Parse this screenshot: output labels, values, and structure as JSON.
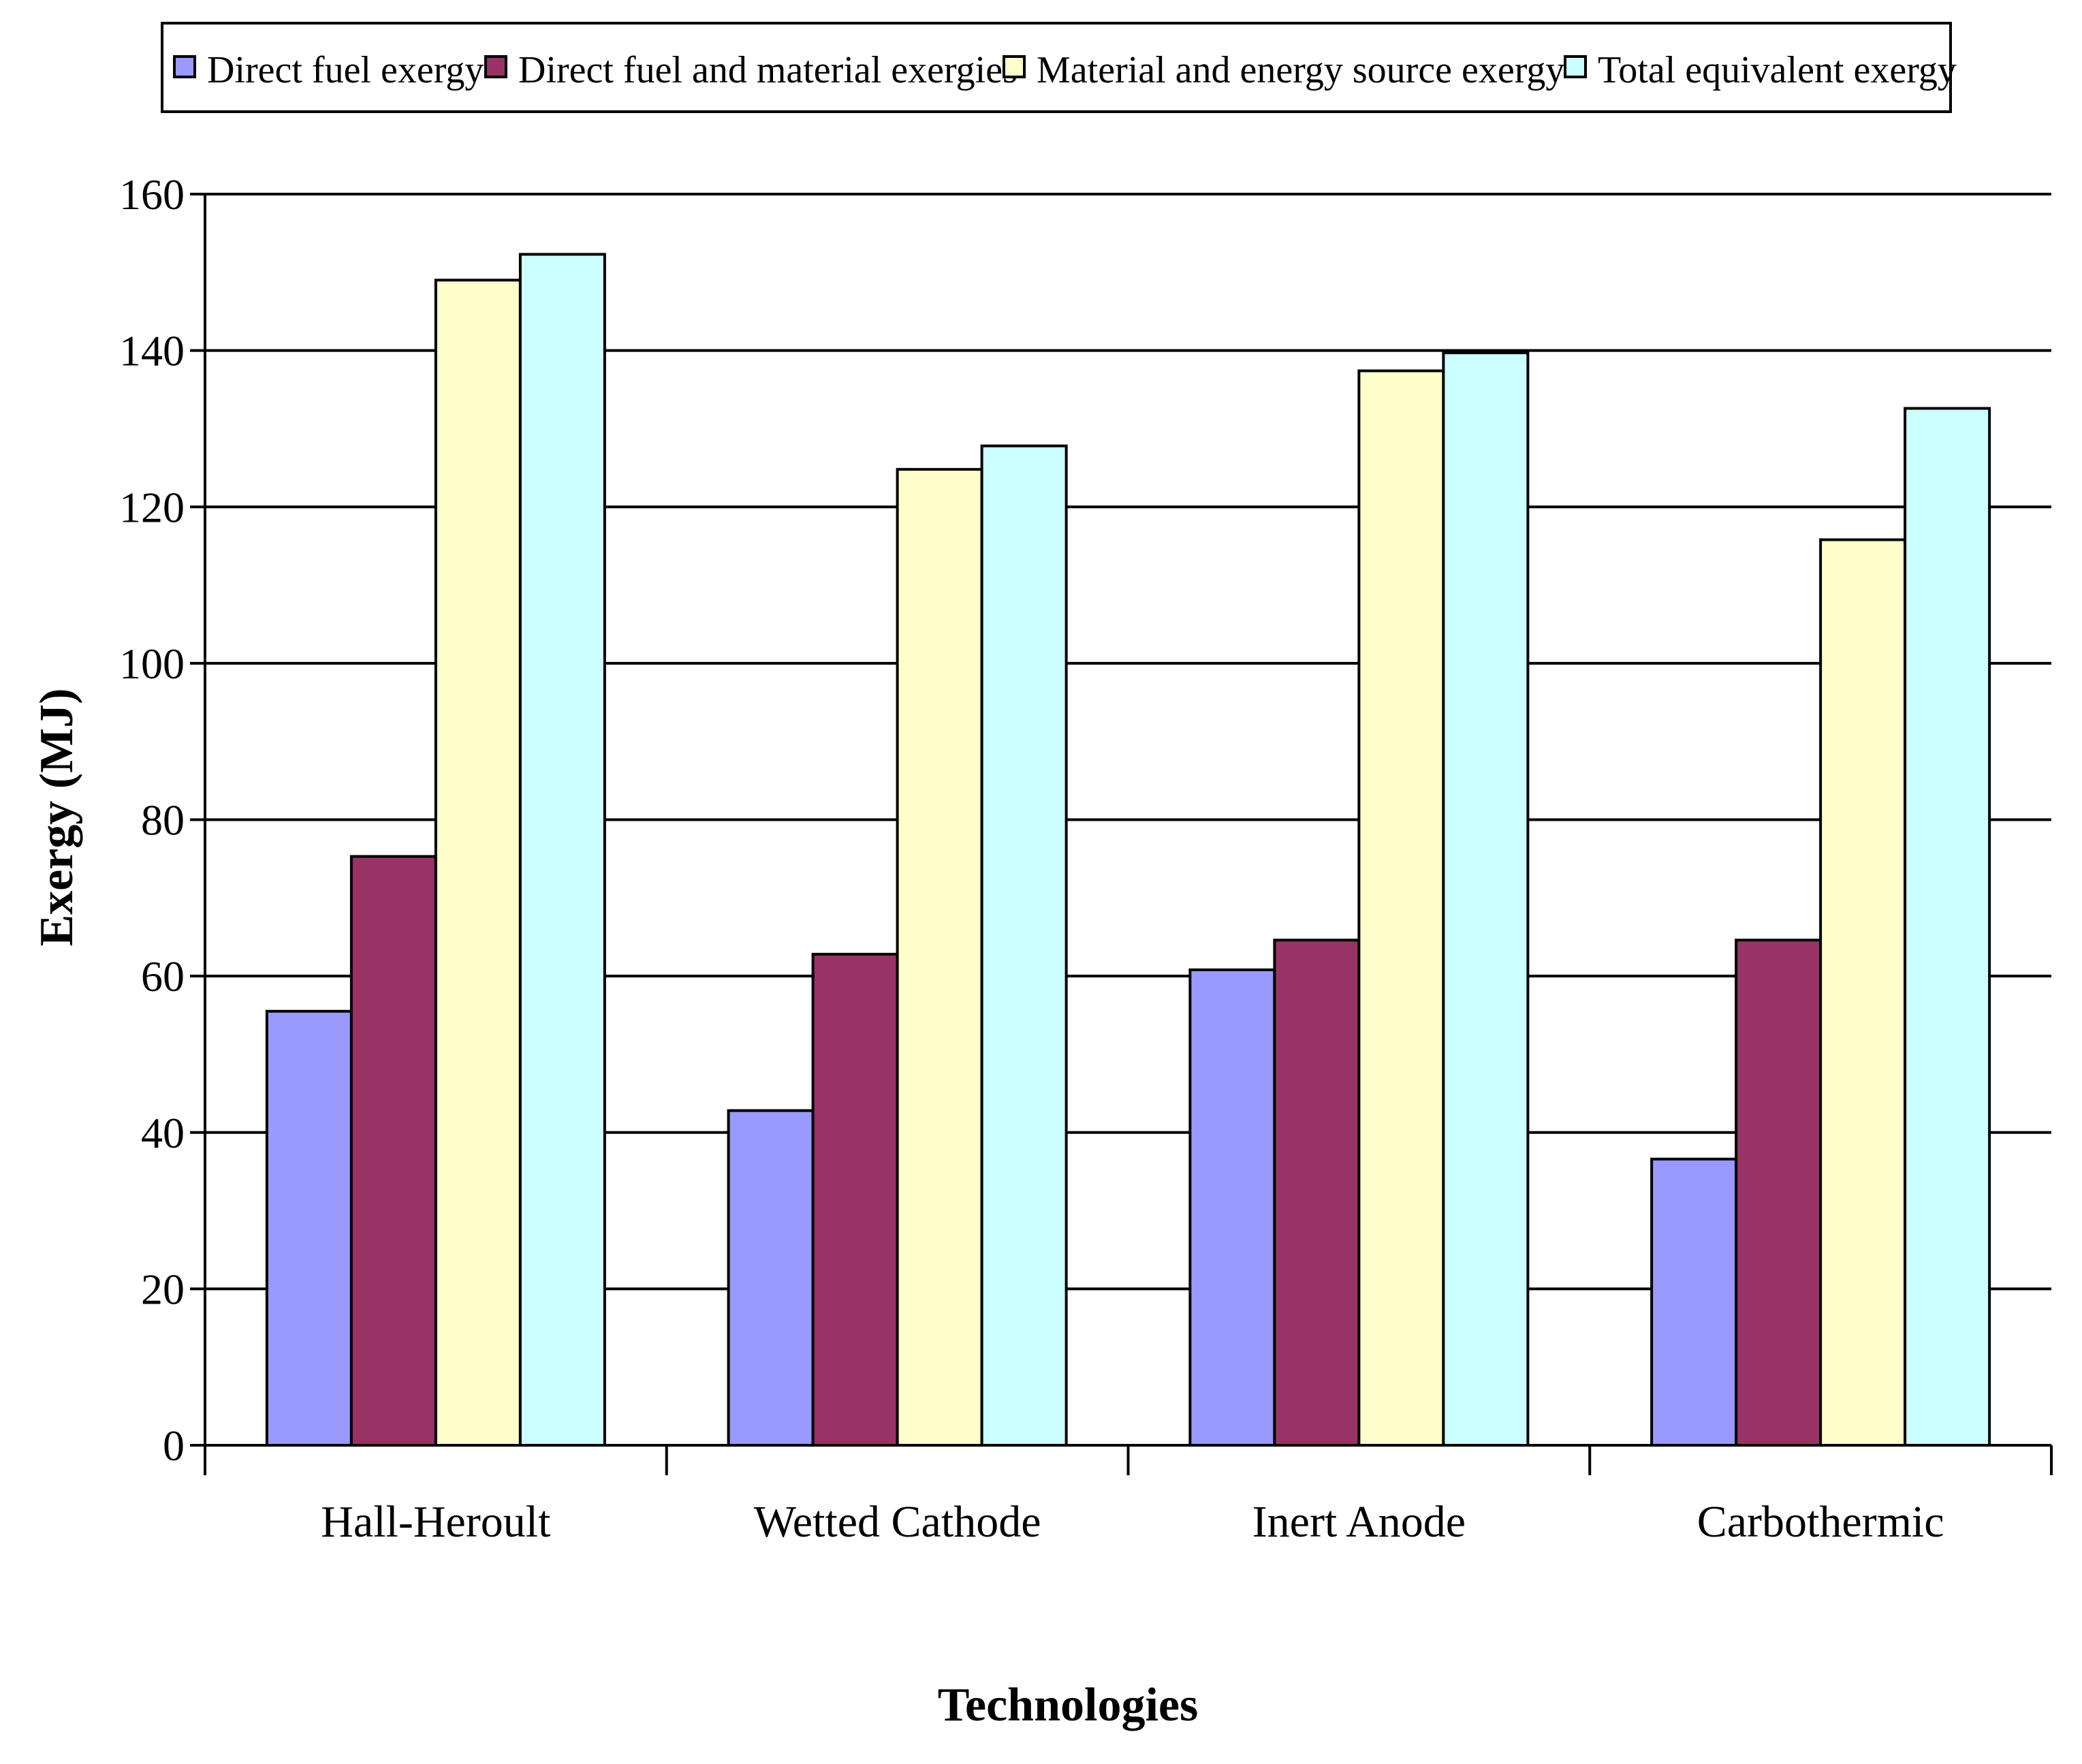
{
  "chart_data": {
    "type": "bar",
    "title": "",
    "xlabel": "Technologies",
    "ylabel": "Exergy (MJ)",
    "ylim": [
      0,
      160
    ],
    "yticks": [
      0,
      20,
      40,
      60,
      80,
      100,
      120,
      140,
      160
    ],
    "grid": true,
    "legend_position": "top",
    "categories": [
      "Hall-Heroult",
      "Wetted Cathode",
      "Inert Anode",
      "Carbothermic"
    ],
    "series": [
      {
        "name": "Direct fuel exergy",
        "color": "#9999FF",
        "values": [
          55.5,
          42.8,
          60.8,
          36.6
        ]
      },
      {
        "name": "Direct fuel and material exergies",
        "color": "#993366",
        "values": [
          75.3,
          62.8,
          64.6,
          64.6
        ]
      },
      {
        "name": "Material and energy source exergy",
        "color": "#FFFFCC",
        "values": [
          149,
          124.8,
          137.4,
          115.8
        ]
      },
      {
        "name": "Total equivalent exergy",
        "color": "#CCFFFF",
        "values": [
          152.3,
          127.8,
          139.7,
          132.6
        ]
      }
    ]
  }
}
